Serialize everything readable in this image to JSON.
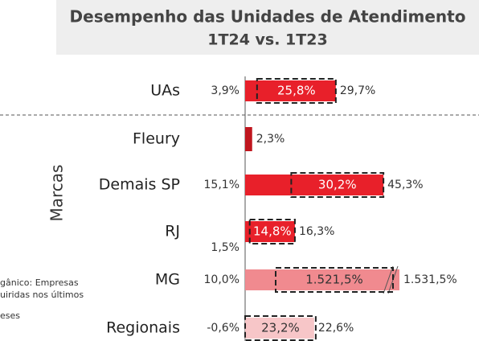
{
  "chart_data": {
    "type": "bar",
    "title": "Desempenho das Unidades de Atendimento",
    "subtitle": "1T24 vs. 1T23",
    "y_label": "Marcas",
    "annotations": [
      "gânico: Empresas",
      "uiridas nos últimos",
      "eses"
    ],
    "categories": [
      "UAs",
      "Fleury",
      "Demais SP",
      "RJ",
      "MG",
      "Regionais"
    ],
    "colors": [
      "#e8202a",
      "#c0161e",
      "#e8202a",
      "#e8202a",
      "#f08a8f",
      "#f7c6c8"
    ],
    "series": [
      {
        "values": [
          3.9,
          null,
          15.1,
          1.5,
          10.0,
          -0.6
        ],
        "value_labels": [
          "3,9%",
          null,
          "15,1%",
          "1,5%",
          "10,0%",
          "-0,6%"
        ]
      },
      {
        "values": [
          25.8,
          null,
          30.2,
          14.8,
          1521.5,
          23.2
        ],
        "value_labels": [
          "25,8%",
          null,
          "30,2%",
          "14,8%",
          "1.521,5%",
          "23,2%"
        ]
      },
      {
        "values": [
          29.7,
          2.3,
          45.3,
          16.3,
          1531.5,
          22.6
        ],
        "value_labels": [
          "29,7%",
          "2,3%",
          "45,3%",
          "16,3%",
          "1.531,5%",
          "22,6%"
        ]
      }
    ]
  }
}
